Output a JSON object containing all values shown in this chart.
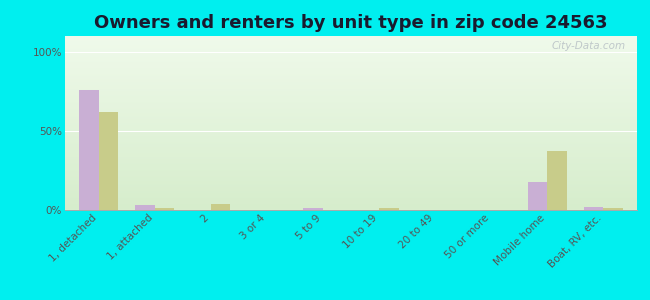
{
  "title": "Owners and renters by unit type in zip code 24563",
  "categories": [
    "1, detached",
    "1, attached",
    "2",
    "3 or 4",
    "5 to 9",
    "10 to 19",
    "20 to 49",
    "50 or more",
    "Mobile home",
    "Boat, RV, etc."
  ],
  "owner_values": [
    76,
    3,
    0,
    0,
    1,
    0,
    0,
    0,
    18,
    2
  ],
  "renter_values": [
    62,
    1,
    4,
    0,
    0,
    1,
    0,
    0,
    37,
    1
  ],
  "owner_color": "#c9afd4",
  "renter_color": "#c8cc8a",
  "background_color": "#00efef",
  "plot_bg_topleft": "#d8ecd0",
  "plot_bg_topright": "#eef5e8",
  "plot_bg_bottom": "#f5faf0",
  "yticks": [
    0,
    50,
    100
  ],
  "ylim": [
    0,
    110
  ],
  "bar_width": 0.35,
  "title_fontsize": 13,
  "tick_fontsize": 7.5,
  "legend_fontsize": 9,
  "watermark": "City-Data.com"
}
